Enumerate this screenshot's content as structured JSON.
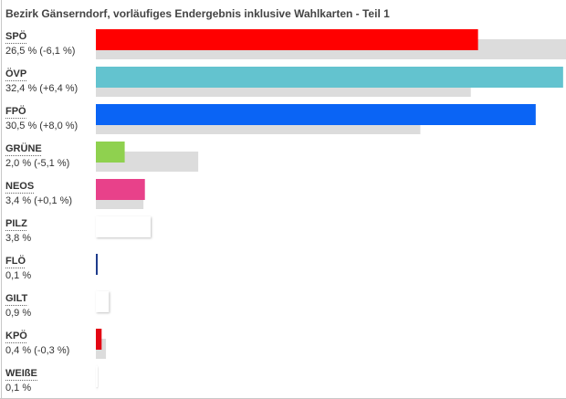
{
  "chart_data": {
    "type": "bar",
    "title": "Bezirk Gänserndorf, vorläufiges Endergebnis inklusive Wahlkarten - Teil 1",
    "categories": [
      "SPÖ",
      "ÖVP",
      "FPÖ",
      "GRÜNE",
      "NEOS",
      "PILZ",
      "FLÖ",
      "GILT",
      "KPÖ",
      "WEIßE"
    ],
    "series": [
      {
        "colors": [
          "#ff0000",
          "#63c3cf",
          "#0a64f5",
          "#8fd14f",
          "#e8418a",
          "#ffffff",
          "#1e3c8c",
          "#ffffff",
          "#e30613",
          "#ffffff"
        ],
        "values": [
          26.5,
          32.4,
          30.5,
          2.0,
          3.4,
          3.8,
          0.1,
          0.9,
          0.4,
          0.1
        ],
        "value_labels": [
          "26,5 % (-6,1 %)",
          "32,4 % (+6,4 %)",
          "30,5 % (+8,0 %)",
          "2,0 % (-5,1 %)",
          "3,4 % (+0,1 %)",
          "3,8 %",
          "0,1 %",
          "0,9 %",
          "0,4 % (-0,3 %)",
          "0,1 %"
        ]
      },
      {
        "color": "#dcdcdc",
        "values": [
          32.6,
          26.0,
          22.5,
          7.1,
          3.3,
          null,
          null,
          null,
          0.7,
          null
        ]
      }
    ]
  }
}
